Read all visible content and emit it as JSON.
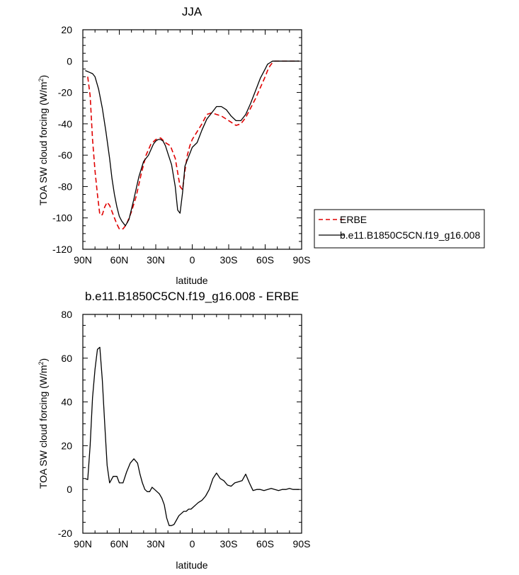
{
  "chart_data": [
    {
      "type": "line",
      "title": "JJA",
      "xlabel": "latitude",
      "ylabel": "TOA SW cloud forcing (W/m",
      "ylabel_sup": "2",
      "ylabel_end": ")",
      "xlim": [
        90,
        -90
      ],
      "ylim": [
        -120,
        20
      ],
      "xticks": [
        90,
        60,
        30,
        0,
        -30,
        -60,
        -90
      ],
      "xtick_labels": [
        "90N",
        "60N",
        "30N",
        "0",
        "30S",
        "60S",
        "90S"
      ],
      "yticks": [
        20,
        0,
        -20,
        -40,
        -60,
        -80,
        -100,
        -120
      ],
      "ytick_labels": [
        "20",
        "0",
        "-20",
        "-40",
        "-60",
        "-80",
        "-100",
        "-120"
      ],
      "legend": "right",
      "series": [
        {
          "name": "ERBE",
          "color": "#e00000",
          "dash": true,
          "x": [
            86,
            84,
            82,
            80,
            78,
            76,
            74,
            72,
            70,
            68,
            65,
            62,
            60,
            57,
            54,
            50,
            46,
            42,
            38,
            34,
            30,
            26,
            22,
            18,
            14,
            10,
            8,
            6,
            4,
            2,
            0,
            -4,
            -8,
            -12,
            -16,
            -20,
            -24,
            -28,
            -32,
            -36,
            -40,
            -44,
            -48,
            -52,
            -56,
            -60,
            -62,
            -64,
            -66,
            -68,
            -70,
            -72,
            -76,
            -80,
            -84,
            -88
          ],
          "y": [
            -10,
            -22,
            -50,
            -70,
            -85,
            -98,
            -98,
            -93,
            -90,
            -92,
            -98,
            -104,
            -107,
            -107,
            -104,
            -96,
            -86,
            -72,
            -60,
            -53,
            -50,
            -49,
            -52,
            -54,
            -62,
            -80,
            -82,
            -70,
            -60,
            -54,
            -50,
            -45,
            -40,
            -34,
            -33,
            -34,
            -35,
            -37,
            -39,
            -41,
            -40,
            -36,
            -30,
            -24,
            -17,
            -10,
            -6,
            -3,
            -1,
            0,
            0,
            0,
            0,
            0,
            0,
            0
          ]
        },
        {
          "name": "b.e11.B1850C5CN.f19_g16.008",
          "color": "#000000",
          "dash": false,
          "x": [
            88,
            85,
            82,
            80,
            77,
            74,
            71,
            68,
            66,
            64,
            62,
            60,
            58,
            55,
            52,
            48,
            44,
            40,
            36,
            32,
            30,
            28,
            26,
            24,
            22,
            20,
            17,
            14,
            12,
            10,
            8,
            6,
            4,
            0,
            -4,
            -8,
            -12,
            -16,
            -20,
            -24,
            -28,
            -32,
            -36,
            -40,
            -44,
            -48,
            -52,
            -56,
            -60,
            -62,
            -64,
            -66,
            -68,
            -70,
            -75,
            -80,
            -85,
            -88
          ],
          "y": [
            -6,
            -7,
            -8,
            -10,
            -18,
            -30,
            -45,
            -62,
            -75,
            -85,
            -93,
            -99,
            -102,
            -105,
            -101,
            -88,
            -74,
            -64,
            -60,
            -53,
            -51,
            -50,
            -50,
            -51,
            -54,
            -59,
            -66,
            -80,
            -95,
            -97,
            -84,
            -67,
            -63,
            -55,
            -52,
            -44,
            -37,
            -33,
            -29,
            -29,
            -31,
            -35,
            -38,
            -38,
            -34,
            -27,
            -19,
            -11,
            -5,
            -2,
            -1,
            0,
            0,
            0,
            0,
            0,
            0,
            0
          ]
        }
      ]
    },
    {
      "type": "line",
      "title": "b.e11.B1850C5CN.f19_g16.008 - ERBE",
      "xlabel": "latitude",
      "ylabel": "TOA SW cloud forcing (W/m",
      "ylabel_sup": "2",
      "ylabel_end": ")",
      "xlim": [
        90,
        -90
      ],
      "ylim": [
        -20,
        80
      ],
      "xticks": [
        90,
        60,
        30,
        0,
        -30,
        -60,
        -90
      ],
      "xtick_labels": [
        "90N",
        "60N",
        "30N",
        "0",
        "30S",
        "60S",
        "90S"
      ],
      "yticks": [
        80,
        60,
        40,
        20,
        0,
        -20
      ],
      "ytick_labels": [
        "80",
        "60",
        "40",
        "20",
        "0",
        "-20"
      ],
      "series": [
        {
          "color": "#000000",
          "dash": false,
          "x": [
            88,
            86,
            84,
            82,
            80,
            78,
            76,
            74,
            72,
            70,
            68,
            65,
            62,
            60,
            57,
            54,
            51,
            48,
            45,
            43,
            41,
            39,
            37,
            35,
            33,
            31,
            29,
            27,
            25,
            23,
            21,
            19,
            17,
            15,
            13,
            11,
            9,
            7,
            5,
            3,
            1,
            -1,
            -3,
            -5,
            -8,
            -11,
            -14,
            -17,
            -20,
            -23,
            -26,
            -29,
            -32,
            -35,
            -38,
            -41,
            -44,
            -47,
            -50,
            -53,
            -56,
            -59,
            -62,
            -65,
            -68,
            -71,
            -74,
            -77,
            -80,
            -83,
            -86,
            -88
          ],
          "y": [
            5,
            4.5,
            20,
            42,
            55,
            64,
            65,
            50,
            30,
            11,
            3,
            6,
            6,
            3,
            3,
            8,
            12,
            14,
            12,
            7,
            3,
            0,
            -1,
            -1,
            1,
            0,
            -1,
            -2,
            -4,
            -7,
            -13,
            -16.5,
            -16.5,
            -16,
            -14,
            -12,
            -11,
            -10,
            -10,
            -9,
            -9,
            -8,
            -7,
            -6,
            -5,
            -3,
            0,
            5,
            7.5,
            5,
            4,
            2,
            1.5,
            3,
            3.5,
            4,
            7,
            3,
            -0.5,
            0,
            0,
            -0.5,
            0,
            0.5,
            0,
            -0.5,
            0,
            0,
            0.5,
            0,
            0,
            0
          ]
        }
      ]
    }
  ]
}
